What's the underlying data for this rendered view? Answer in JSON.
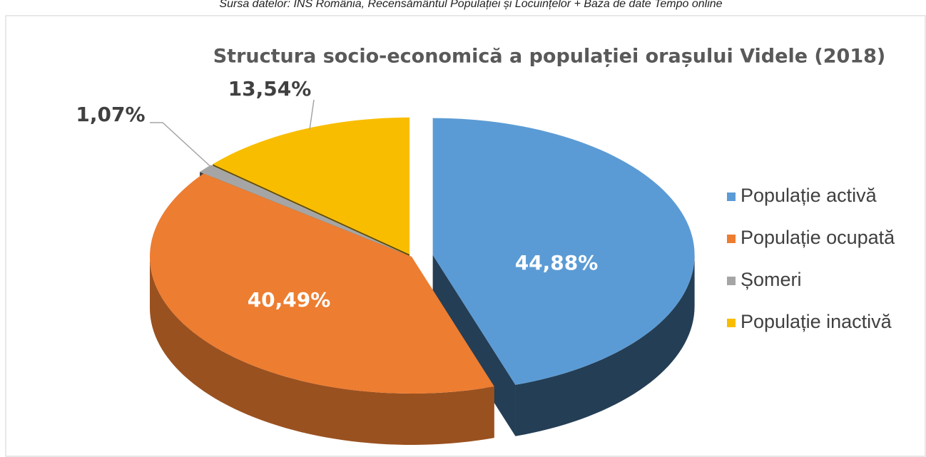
{
  "source": "Sursa datelor: INS România, Recensământul Populației și Locuințelor + Baza de date Tempo online",
  "chart_data": {
    "type": "pie3d",
    "title": "Structura  socio-economică a populației orașului Videle (2018)",
    "categories": [
      "Populație activă",
      "Populație ocupată",
      "Șomeri",
      "Populație inactivă"
    ],
    "values": [
      44.88,
      40.49,
      1.07,
      13.54
    ],
    "value_labels": [
      "44,88%",
      "40,49%",
      "1,07%",
      "13,54%"
    ],
    "colors": [
      "#5b9bd5",
      "#ed7d31",
      "#a5a5a5",
      "#f9bd00"
    ],
    "legend": "right"
  }
}
